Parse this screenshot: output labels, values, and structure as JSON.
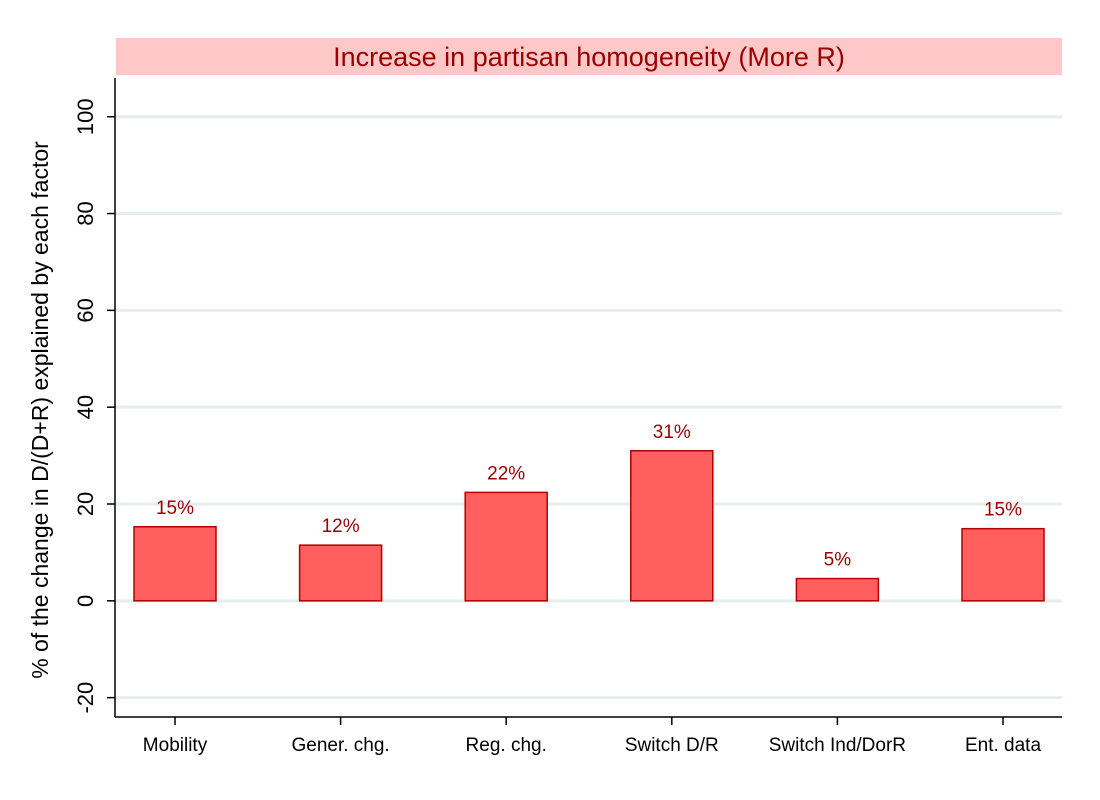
{
  "chart_data": {
    "type": "bar",
    "title": "Increase in partisan homogeneity (More R)",
    "xlabel": "",
    "ylabel": "% of the change in D/(D+R) explained by each factor",
    "categories": [
      "Mobility",
      "Gener. chg.",
      "Reg. chg.",
      "Switch D/R",
      "Switch Ind/DorR",
      "Ent. data"
    ],
    "values": [
      15.3,
      11.5,
      22.4,
      31.0,
      4.6,
      14.9
    ],
    "data_labels": [
      "15%",
      "12%",
      "22%",
      "31%",
      "5%",
      "15%"
    ],
    "ylim": [
      -24,
      108
    ],
    "yticks": [
      -20,
      0,
      20,
      40,
      60,
      80,
      100
    ],
    "grid": true,
    "legend": "none",
    "colors": {
      "bar_fill": "#ff5f5f",
      "bar_stroke": "#b30000",
      "label": "#9b0000",
      "title_band": "#ffc8c8",
      "title_text": "#9b0000",
      "grid": "#e6eded"
    }
  }
}
